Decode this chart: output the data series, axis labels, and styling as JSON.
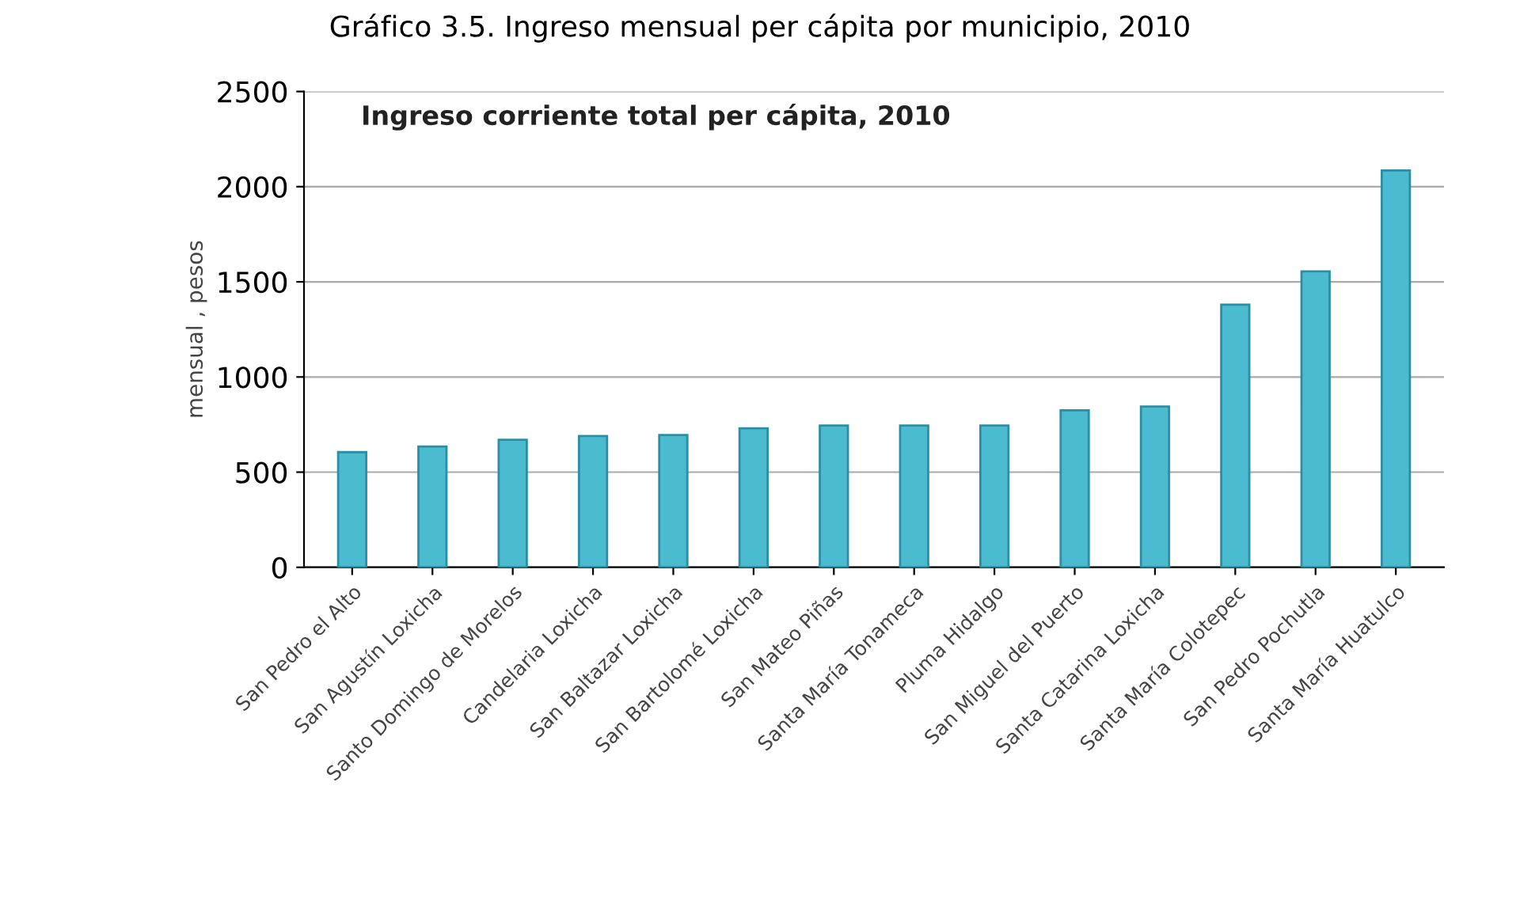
{
  "chart_data": {
    "type": "bar",
    "title": "Gráfico 3.5. Ingreso mensual per cápita por municipio, 2010",
    "annotations": [
      "Ingreso corriente total per cápita, 2010"
    ],
    "ylabel": "mensual , pesos",
    "categories": [
      "San Pedro el Alto",
      "San Agustín Loxicha",
      "Santo Domingo de Morelos",
      "Candelaria Loxicha",
      "San Baltazar Loxicha",
      "San Bartolomé Loxicha",
      "San Mateo Piñas",
      "Santa María Tonameca",
      "Pluma Hidalgo",
      "San Miguel del Puerto",
      "Santa Catarina Loxicha",
      "Santa María Colotepec",
      "San Pedro Pochutla",
      "Santa María Huatulco"
    ],
    "values": [
      605,
      635,
      670,
      690,
      695,
      730,
      745,
      745,
      745,
      825,
      845,
      1380,
      1555,
      2085
    ],
    "color": "#4bbbd0",
    "ylim": [
      0,
      2500
    ],
    "yticks": [
      0,
      500,
      1000,
      1500,
      2000,
      2500
    ],
    "grid": "y",
    "legend": false
  }
}
